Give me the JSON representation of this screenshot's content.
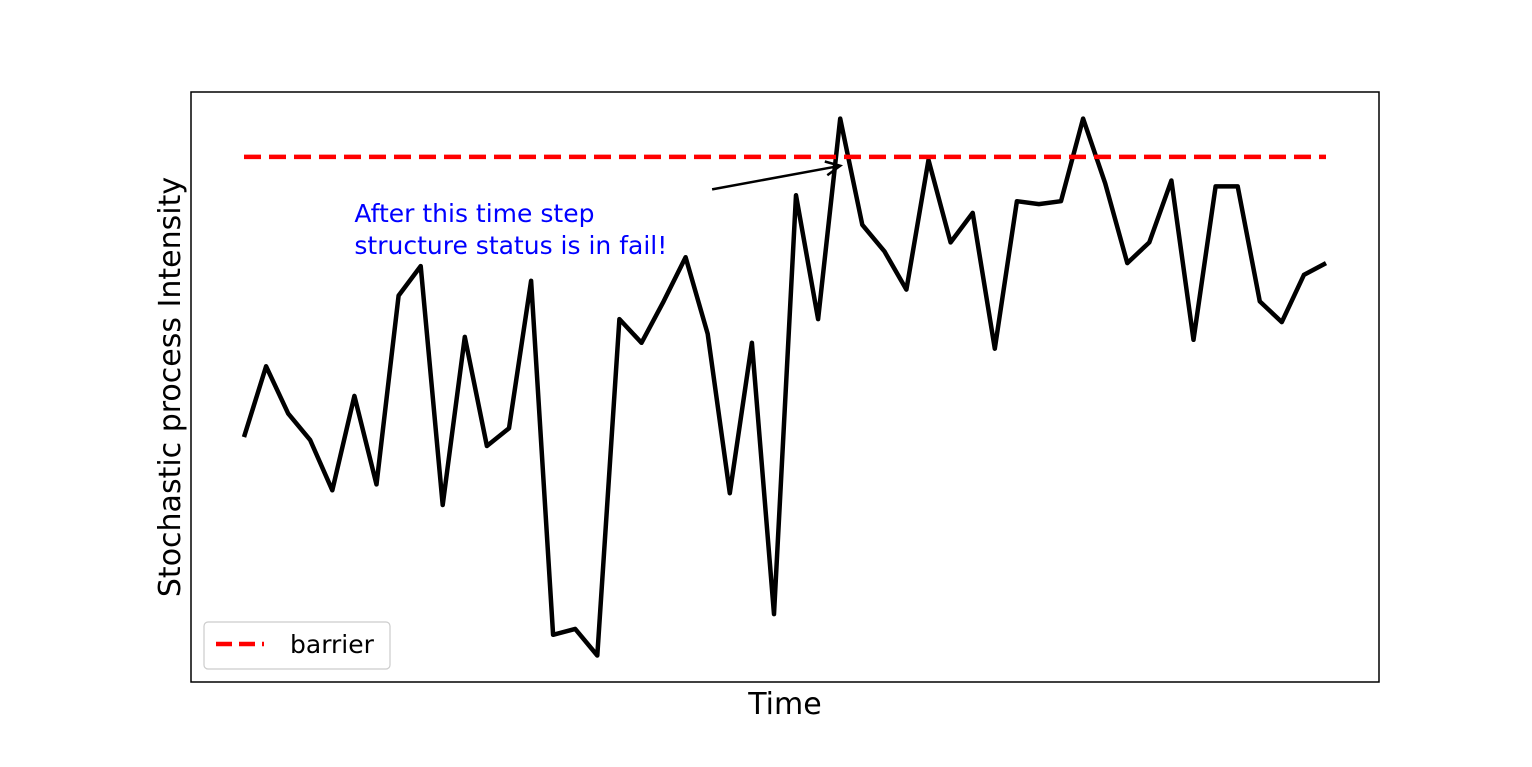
{
  "chart_data": {
    "type": "line",
    "xlabel": "Time",
    "ylabel": "Stochastic process Intensity",
    "x_ticks_visible": false,
    "y_ticks_visible": false,
    "xlim": [
      -2.4,
      51.4
    ],
    "ylim": [
      0.0,
      1.0
    ],
    "grid": false,
    "legend": {
      "placement": "lower-left",
      "entries": [
        "barrier"
      ]
    },
    "series": [
      {
        "color": "#000000",
        "x": [
          0,
          1,
          2,
          3,
          4,
          5,
          6,
          7,
          8,
          9,
          10,
          11,
          12,
          13,
          14,
          15,
          16,
          17,
          18,
          19,
          20,
          21,
          22,
          23,
          24,
          25,
          26,
          27,
          28,
          29,
          30,
          31,
          32,
          33,
          34,
          35,
          36,
          37,
          38,
          39,
          40,
          41,
          42,
          43,
          44,
          45,
          46,
          47,
          48,
          49
        ],
        "y": [
          0.415,
          0.535,
          0.455,
          0.41,
          0.325,
          0.485,
          0.335,
          0.655,
          0.705,
          0.3,
          0.585,
          0.4,
          0.43,
          0.68,
          0.08,
          0.09,
          0.045,
          0.615,
          0.575,
          0.645,
          0.72,
          0.59,
          0.32,
          0.575,
          0.115,
          0.825,
          0.615,
          0.955,
          0.775,
          0.73,
          0.665,
          0.885,
          0.745,
          0.795,
          0.565,
          0.815,
          0.81,
          0.815,
          0.955,
          0.845,
          0.71,
          0.745,
          0.85,
          0.58,
          0.84,
          0.84,
          0.645,
          0.61,
          0.69,
          0.71
        ]
      },
      {
        "name": "barrier",
        "color": "#ff0000",
        "style": "dashed",
        "x": [
          0,
          49
        ],
        "y": [
          0.89,
          0.89
        ]
      }
    ],
    "annotations": [
      {
        "text_lines": [
          "After this time step",
          "structure status is in fail!"
        ],
        "color": "#0000ff",
        "text_at": [
          5.0,
          0.78
        ],
        "arrow_tail": [
          21.2,
          0.835
        ],
        "arrow_head": [
          27.0,
          0.875
        ]
      }
    ]
  }
}
